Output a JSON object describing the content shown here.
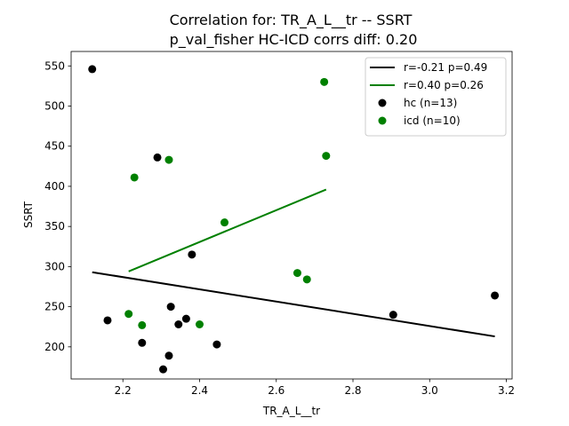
{
  "chart_data": {
    "type": "scatter",
    "title": "Correlation for: TR_A_L__tr -- SSRT",
    "subtitle": "p_val_fisher HC-ICD corrs diff: 0.20",
    "xlabel": "TR_A_L__tr",
    "ylabel": "SSRT",
    "xlim": [
      2.065,
      3.215
    ],
    "ylim": [
      160,
      568
    ],
    "xticks": [
      "2.2",
      "2.4",
      "2.6",
      "2.8",
      "3.0",
      "3.2"
    ],
    "yticks": [
      "200",
      "250",
      "300",
      "350",
      "400",
      "450",
      "500",
      "550"
    ],
    "legend_position": "top-right",
    "grid": false,
    "series": [
      {
        "name": "hc (n=13)",
        "kind": "scatter",
        "color": "#000000",
        "points": [
          [
            2.12,
            546
          ],
          [
            2.16,
            233
          ],
          [
            2.25,
            205
          ],
          [
            2.29,
            436
          ],
          [
            2.305,
            172
          ],
          [
            2.32,
            189
          ],
          [
            2.325,
            250
          ],
          [
            2.345,
            228
          ],
          [
            2.365,
            235
          ],
          [
            2.38,
            315
          ],
          [
            2.445,
            203
          ],
          [
            2.905,
            240
          ],
          [
            3.17,
            264
          ]
        ]
      },
      {
        "name": "icd (n=10)",
        "kind": "scatter",
        "color": "#008000",
        "points": [
          [
            2.215,
            241
          ],
          [
            2.23,
            411
          ],
          [
            2.25,
            227
          ],
          [
            2.32,
            433
          ],
          [
            2.4,
            228
          ],
          [
            2.465,
            355
          ],
          [
            2.655,
            292
          ],
          [
            2.68,
            284
          ],
          [
            2.725,
            530
          ],
          [
            2.73,
            438
          ]
        ]
      },
      {
        "name": "r=-0.21 p=0.49",
        "kind": "line",
        "color": "#000000",
        "points": [
          [
            2.12,
            293
          ],
          [
            3.17,
            213
          ]
        ]
      },
      {
        "name": "r=0.40 p=0.26",
        "kind": "line",
        "color": "#008000",
        "points": [
          [
            2.215,
            294
          ],
          [
            2.73,
            396
          ]
        ]
      }
    ],
    "legend": [
      {
        "label": "r=-0.21 p=0.49",
        "kind": "line",
        "color": "#000000"
      },
      {
        "label": "r=0.40 p=0.26",
        "kind": "line",
        "color": "#008000"
      },
      {
        "label": "hc (n=13)",
        "kind": "marker",
        "color": "#000000"
      },
      {
        "label": "icd (n=10)",
        "kind": "marker",
        "color": "#008000"
      }
    ]
  }
}
